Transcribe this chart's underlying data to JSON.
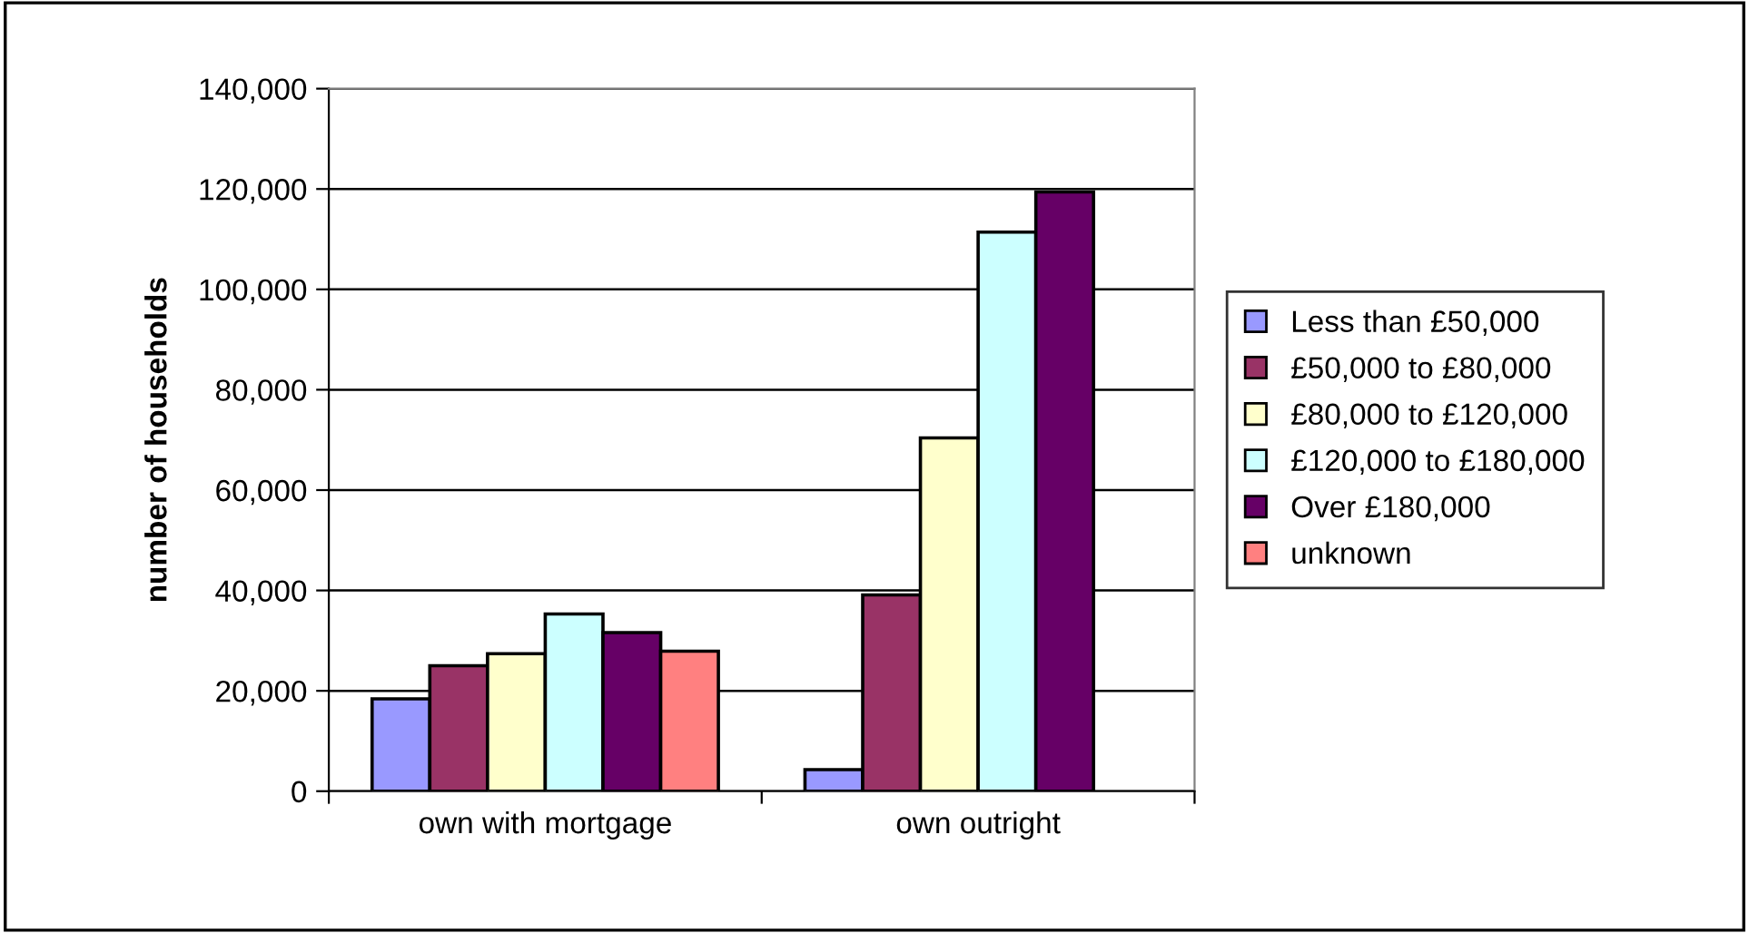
{
  "chart_data": {
    "type": "bar",
    "ylabel": "number of households",
    "categories": [
      "own with mortgage",
      "own outright"
    ],
    "series": [
      {
        "name": "Less than £50,000",
        "color": "#9999ff",
        "values": [
          18400,
          4300
        ]
      },
      {
        "name": "£50,000 to £80,000",
        "color": "#993366",
        "values": [
          25000,
          39100
        ]
      },
      {
        "name": "£80,000 to £120,000",
        "color": "#ffffcc",
        "values": [
          27400,
          70400
        ]
      },
      {
        "name": "£120,000 to £180,000",
        "color": "#ccffff",
        "values": [
          35300,
          111400
        ]
      },
      {
        "name": "Over £180,000",
        "color": "#660066",
        "values": [
          31600,
          119400
        ]
      },
      {
        "name": "unknown",
        "color": "#ff8080",
        "values": [
          27900,
          null
        ]
      }
    ],
    "ylim": [
      0,
      140000
    ],
    "yticks": [
      {
        "value": 0,
        "label": "0"
      },
      {
        "value": 20000,
        "label": "20,000"
      },
      {
        "value": 40000,
        "label": "40,000"
      },
      {
        "value": 60000,
        "label": "60,000"
      },
      {
        "value": 80000,
        "label": "80,000"
      },
      {
        "value": 100000,
        "label": "100,000"
      },
      {
        "value": 120000,
        "label": "120,000"
      },
      {
        "value": 140000,
        "label": "140,000"
      }
    ],
    "grid": "y",
    "legend": "right"
  }
}
